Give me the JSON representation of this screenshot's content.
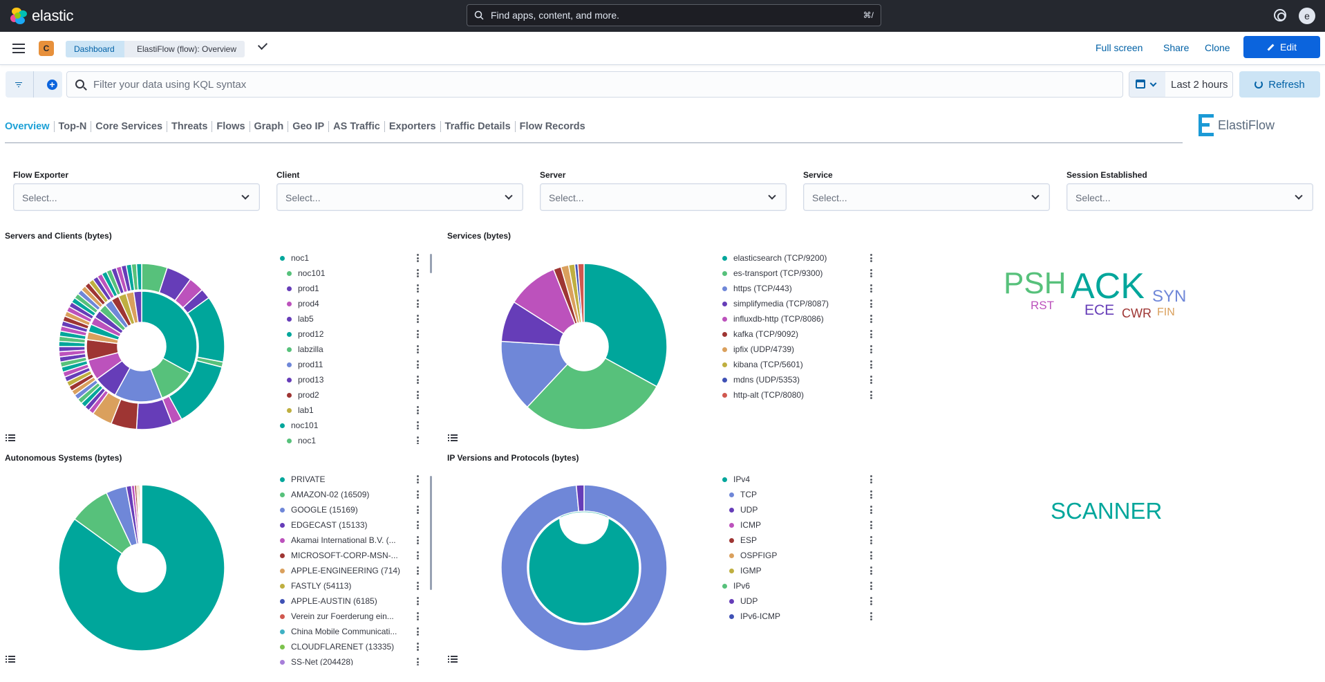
{
  "header": {
    "brand": "elastic",
    "search_placeholder": "Find apps, content, and more.",
    "search_shortcut": "⌘/",
    "user_initial": "e"
  },
  "breadcrumbs": {
    "space_initial": "C",
    "items": [
      "Dashboard",
      "ElastiFlow (flow): Overview"
    ]
  },
  "actions": {
    "full_screen": "Full screen",
    "share": "Share",
    "clone": "Clone",
    "edit": "Edit"
  },
  "query": {
    "placeholder": "Filter your data using KQL syntax",
    "time_range": "Last 2 hours",
    "refresh": "Refresh"
  },
  "nav_tabs": [
    "Overview",
    "Top-N",
    "Core Services",
    "Threats",
    "Flows",
    "Graph",
    "Geo IP",
    "AS Traffic",
    "Exporters",
    "Traffic Details",
    "Flow Records"
  ],
  "brand_logo_text": "ElastiFlow",
  "controls": [
    {
      "label": "Flow Exporter",
      "value": "Select..."
    },
    {
      "label": "Client",
      "value": "Select..."
    },
    {
      "label": "Server",
      "value": "Select..."
    },
    {
      "label": "Service",
      "value": "Select..."
    },
    {
      "label": "Session Established",
      "value": "Select..."
    }
  ],
  "colors": {
    "teal": "#00a69b",
    "green": "#57c17b",
    "blue": "#6f87d8",
    "purple": "#663db8",
    "magenta": "#bc52bc",
    "red": "#9e3533",
    "orange": "#daa05d",
    "yellow": "#bfaf40",
    "accent": "#0b64dd"
  },
  "panels": {
    "servers_clients": {
      "title": "Servers and Clients (bytes)",
      "legend": [
        {
          "label": "noc1",
          "color": "#00a69b",
          "indent": 0
        },
        {
          "label": "noc101",
          "color": "#57c17b",
          "indent": 1
        },
        {
          "label": "prod1",
          "color": "#663db8",
          "indent": 1
        },
        {
          "label": "prod4",
          "color": "#bc52bc",
          "indent": 1
        },
        {
          "label": "lab5",
          "color": "#663db8",
          "indent": 1
        },
        {
          "label": "prod12",
          "color": "#00a69b",
          "indent": 1
        },
        {
          "label": "labzilla",
          "color": "#57c17b",
          "indent": 1
        },
        {
          "label": "prod11",
          "color": "#6f87d8",
          "indent": 1
        },
        {
          "label": "prod13",
          "color": "#663db8",
          "indent": 1
        },
        {
          "label": "prod2",
          "color": "#9e3533",
          "indent": 1
        },
        {
          "label": "lab1",
          "color": "#bfaf40",
          "indent": 1
        },
        {
          "label": "noc101",
          "color": "#00a69b",
          "indent": 0
        },
        {
          "label": "noc1",
          "color": "#57c17b",
          "indent": 1
        }
      ]
    },
    "services": {
      "title": "Services (bytes)",
      "legend": [
        {
          "label": "elasticsearch (TCP/9200)",
          "color": "#00a69b"
        },
        {
          "label": "es-transport (TCP/9300)",
          "color": "#57c17b"
        },
        {
          "label": "https (TCP/443)",
          "color": "#6f87d8"
        },
        {
          "label": "simplifymedia (TCP/8087)",
          "color": "#663db8"
        },
        {
          "label": "influxdb-http (TCP/8086)",
          "color": "#bc52bc"
        },
        {
          "label": "kafka (TCP/9092)",
          "color": "#9e3533"
        },
        {
          "label": "ipfix (UDP/4739)",
          "color": "#daa05d"
        },
        {
          "label": "kibana (TCP/5601)",
          "color": "#bfaf40"
        },
        {
          "label": "mdns (UDP/5353)",
          "color": "#3f51b5"
        },
        {
          "label": "http-alt (TCP/8080)",
          "color": "#d0584f"
        }
      ]
    },
    "tcp_flags_words": [
      {
        "text": "PSH",
        "color": "#57c17b"
      },
      {
        "text": "ACK",
        "color": "#00a69b"
      },
      {
        "text": "SYN",
        "color": "#6f87d8"
      },
      {
        "text": "RST",
        "color": "#bc52bc"
      },
      {
        "text": "ECE",
        "color": "#663db8"
      },
      {
        "text": "CWR",
        "color": "#9e3533"
      },
      {
        "text": "FIN",
        "color": "#daa05d"
      }
    ],
    "autonomous_systems": {
      "title": "Autonomous Systems (bytes)",
      "legend": [
        {
          "label": "PRIVATE",
          "color": "#00a69b"
        },
        {
          "label": "AMAZON-02 (16509)",
          "color": "#57c17b"
        },
        {
          "label": "GOOGLE (15169)",
          "color": "#6f87d8"
        },
        {
          "label": "EDGECAST (15133)",
          "color": "#663db8"
        },
        {
          "label": "Akamai International B.V. (...",
          "color": "#bc52bc"
        },
        {
          "label": "MICROSOFT-CORP-MSN-...",
          "color": "#9e3533"
        },
        {
          "label": "APPLE-ENGINEERING (714)",
          "color": "#daa05d"
        },
        {
          "label": "FASTLY (54113)",
          "color": "#bfaf40"
        },
        {
          "label": "APPLE-AUSTIN (6185)",
          "color": "#3f51b5"
        },
        {
          "label": "Verein zur Foerderung ein...",
          "color": "#d0584f"
        },
        {
          "label": "China Mobile Communicati...",
          "color": "#3fb1c4"
        },
        {
          "label": "CLOUDFLARENET (13335)",
          "color": "#7cc24c"
        },
        {
          "label": "SS-Net (204428)",
          "color": "#a77ed9"
        }
      ]
    },
    "ip_versions": {
      "title": "IP Versions and Protocols (bytes)",
      "legend": [
        {
          "label": "IPv4",
          "color": "#00a69b",
          "indent": 0
        },
        {
          "label": "TCP",
          "color": "#6f87d8",
          "indent": 1
        },
        {
          "label": "UDP",
          "color": "#663db8",
          "indent": 1
        },
        {
          "label": "ICMP",
          "color": "#bc52bc",
          "indent": 1
        },
        {
          "label": "ESP",
          "color": "#9e3533",
          "indent": 1
        },
        {
          "label": "OSPFIGP",
          "color": "#daa05d",
          "indent": 1
        },
        {
          "label": "IGMP",
          "color": "#bfaf40",
          "indent": 1
        },
        {
          "label": "IPv6",
          "color": "#57c17b",
          "indent": 0
        },
        {
          "label": "UDP",
          "color": "#663db8",
          "indent": 1
        },
        {
          "label": "IPv6-ICMP",
          "color": "#3f51b5",
          "indent": 1
        }
      ]
    },
    "threat_words": [
      {
        "text": "SCANNER",
        "color": "#00a69b"
      }
    ]
  },
  "chart_data": [
    {
      "type": "pie",
      "title": "Servers and Clients (bytes)",
      "inner_ring": [
        {
          "label": "noc1",
          "value": 33
        },
        {
          "label": "noc101",
          "value": 11
        },
        {
          "label": "prod12",
          "value": 14
        },
        {
          "label": "prod1",
          "value": 7
        },
        {
          "label": "prod4",
          "value": 6
        },
        {
          "label": "prod2",
          "value": 6
        },
        {
          "label": "other",
          "value": 23
        }
      ],
      "outer_ring": [
        {
          "label": "noc101",
          "value": 5
        },
        {
          "label": "prod1",
          "value": 5
        },
        {
          "label": "prod4",
          "value": 3
        },
        {
          "label": "lab5",
          "value": 2
        },
        {
          "label": "prod12",
          "value": 13
        },
        {
          "label": "labzilla",
          "value": 1
        },
        {
          "label": "noc101",
          "value": 13
        },
        {
          "label": "prod11",
          "value": 2
        },
        {
          "label": "prod13",
          "value": 7
        },
        {
          "label": "prod2",
          "value": 5
        },
        {
          "label": "lab1",
          "value": 4
        },
        {
          "label": "other",
          "value": 40
        }
      ]
    },
    {
      "type": "pie",
      "title": "Services (bytes)",
      "slices": [
        {
          "label": "elasticsearch (TCP/9200)",
          "value": 33
        },
        {
          "label": "es-transport (TCP/9300)",
          "value": 29
        },
        {
          "label": "https (TCP/443)",
          "value": 14
        },
        {
          "label": "simplifymedia (TCP/8087)",
          "value": 8
        },
        {
          "label": "influxdb-http (TCP/8086)",
          "value": 10
        },
        {
          "label": "kafka (TCP/9092)",
          "value": 1.5
        },
        {
          "label": "ipfix (UDP/4739)",
          "value": 1.5
        },
        {
          "label": "kibana (TCP/5601)",
          "value": 1.2
        },
        {
          "label": "mdns (UDP/5353)",
          "value": 0.6
        },
        {
          "label": "http-alt (TCP/8080)",
          "value": 1.2
        }
      ]
    },
    {
      "type": "pie",
      "title": "Autonomous Systems (bytes)",
      "slices": [
        {
          "label": "PRIVATE",
          "value": 85
        },
        {
          "label": "AMAZON-02 (16509)",
          "value": 8
        },
        {
          "label": "GOOGLE (15169)",
          "value": 4
        },
        {
          "label": "EDGECAST (15133)",
          "value": 1
        },
        {
          "label": "Akamai International B.V. (...",
          "value": 0.6
        },
        {
          "label": "MICROSOFT-CORP-MSN-...",
          "value": 0.4
        },
        {
          "label": "APPLE-ENGINEERING (714)",
          "value": 0.3
        },
        {
          "label": "FASTLY (54113)",
          "value": 0.3
        },
        {
          "label": "APPLE-AUSTIN (6185)",
          "value": 0.2
        },
        {
          "label": "Verein zur Foerderung ein...",
          "value": 0.1
        },
        {
          "label": "China Mobile Communicati...",
          "value": 0.05
        },
        {
          "label": "CLOUDFLARENET (13335)",
          "value": 0.05
        }
      ]
    },
    {
      "type": "pie",
      "title": "IP Versions and Protocols (bytes)",
      "inner_ring": [
        {
          "label": "IPv4",
          "value": 100
        }
      ],
      "outer_ring": [
        {
          "label": "TCP",
          "value": 98.5
        },
        {
          "label": "UDP",
          "value": 1.5
        }
      ]
    }
  ]
}
